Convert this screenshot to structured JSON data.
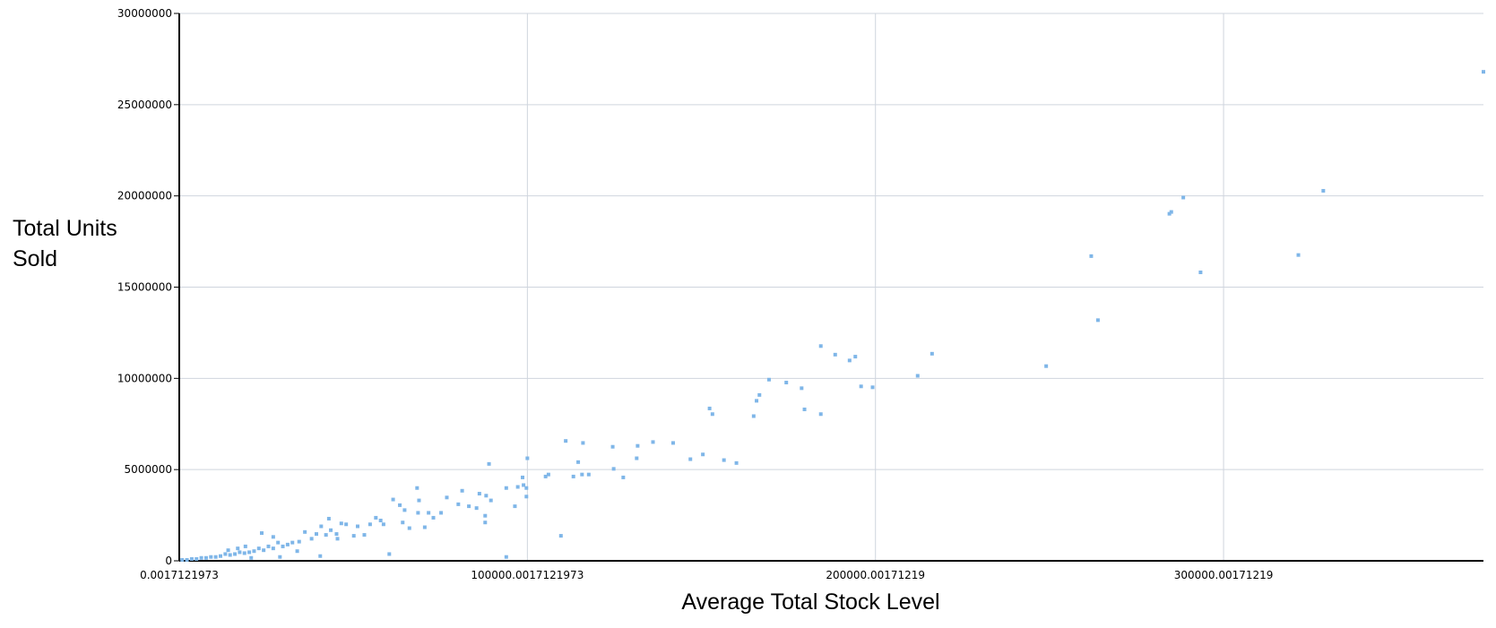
{
  "chart_data": {
    "type": "scatter",
    "x_label": "Average Total Stock Level",
    "y_label": "Total Units Sold",
    "xlim": [
      0.0017121973,
      374656
    ],
    "ylim": [
      0,
      30000000
    ],
    "xticks": [
      0.0017121973,
      {
        "value": 100000.0017121973,
        "label": "100000.0017121973"
      },
      {
        "value": 200000.001712197,
        "label": "200000.00171219"
      },
      {
        "value": 300000.001712197,
        "label": "300000.00171219"
      }
    ],
    "yticks": [
      0,
      5000000,
      10000000,
      15000000,
      20000000,
      25000000,
      30000000
    ],
    "grid": true,
    "series": [
      {
        "color": "#7fb6e8",
        "x": [
          374656,
          328650,
          321488,
          288430,
          284986,
          284435,
          293388,
          261983,
          263912,
          249036,
          216253,
          212121,
          199174,
          195868,
          194215,
          192562,
          188430,
          184298,
          184298,
          179614,
          178788,
          174380,
          169421,
          166667,
          165840,
          165014,
          152342,
          153168,
          160055,
          156474,
          150413,
          146832,
          141873,
          136088,
          131680,
          131405,
          127548,
          124793,
          124518,
          117631,
          115702,
          113223,
          115978,
          114601,
          111019,
          109642,
          106061,
          105234,
          100000,
          99725,
          99725,
          98898,
          98623,
          97245,
          96419,
          93939,
          88981,
          89532,
          88154,
          87879,
          87879,
          86226,
          85400,
          83196,
          81267,
          80165,
          76860,
          75207,
          73003,
          71625,
          70523,
          68871,
          68320,
          68595,
          66116,
          64187,
          64738,
          63361,
          61433,
          60331,
          58678,
          57851,
          56474,
          54821,
          53168,
          51240,
          50138,
          47934,
          46556,
          45179,
          42975,
          45455,
          40496,
          93939,
          43526,
          42149,
          40771,
          39394,
          38017,
          36088,
          34435,
          32507,
          31129,
          29752,
          28375,
          26997,
          25620,
          24242,
          23691,
          22865,
          21488,
          20110,
          18733,
          17355,
          15978,
          14601,
          13223,
          11846,
          10468,
          9091,
          7713,
          6336,
          4959,
          3581,
          2204,
          826,
          28926,
          20661,
          27000,
          33884,
          19008,
          16804,
          14050
        ],
        "values": [
          26800000,
          20280000,
          16760000,
          19910000,
          19120000,
          19020000,
          15810000,
          16700000,
          13190000,
          10670000,
          11350000,
          10140000,
          9510000,
          9560000,
          11190000,
          10980000,
          11300000,
          11770000,
          8040000,
          8300000,
          9460000,
          9770000,
          9930000,
          9090000,
          8770000,
          7930000,
          8350000,
          8040000,
          5360000,
          5520000,
          5830000,
          5570000,
          6460000,
          6510000,
          6300000,
          5620000,
          4570000,
          5040000,
          6250000,
          4730000,
          4730000,
          4620000,
          6460000,
          5410000,
          6570000,
          1370000,
          4730000,
          4620000,
          5620000,
          3990000,
          3520000,
          4150000,
          4570000,
          4050000,
          2990000,
          3990000,
          5310000,
          3310000,
          3570000,
          2470000,
          2100000,
          3680000,
          2890000,
          2990000,
          3840000,
          3100000,
          3470000,
          2630000,
          2360000,
          2630000,
          1840000,
          3310000,
          3990000,
          2630000,
          1790000,
          2100000,
          2780000,
          3050000,
          3360000,
          370000,
          2000000,
          2210000,
          2360000,
          2000000,
          1420000,
          1890000,
          1370000,
          2000000,
          2050000,
          1470000,
          2310000,
          1210000,
          260000,
          210000,
          1680000,
          1420000,
          1890000,
          1470000,
          1210000,
          1580000,
          1050000,
          1000000,
          890000,
          790000,
          1000000,
          680000,
          790000,
          580000,
          1520000,
          680000,
          530000,
          470000,
          420000,
          470000,
          370000,
          320000,
          370000,
          260000,
          210000,
          210000,
          160000,
          160000,
          100000,
          100000,
          50000,
          50000,
          210000,
          160000,
          1310000,
          530000,
          790000,
          680000,
          580000
        ]
      }
    ]
  }
}
